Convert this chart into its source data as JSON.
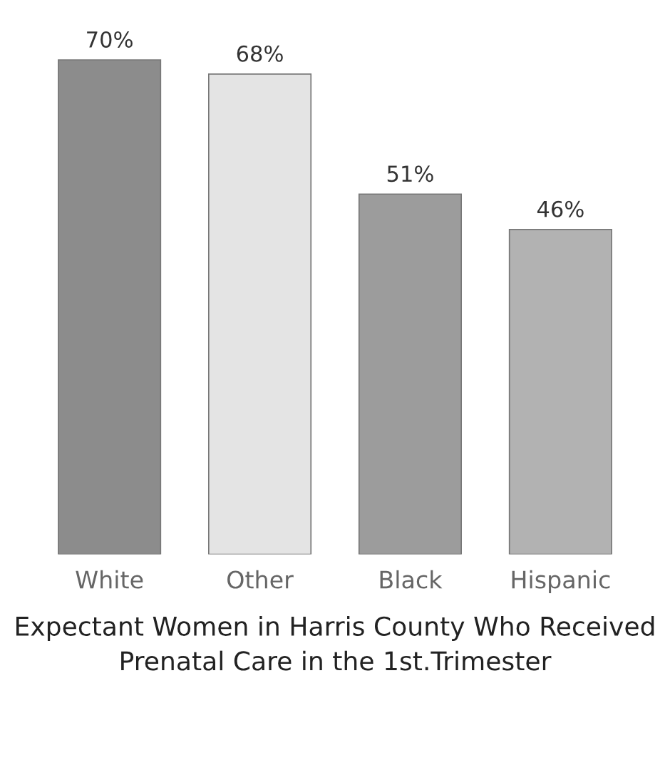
{
  "chart_data": {
    "type": "bar",
    "title": "Expectant Women in Harris County Who Received Prenatal Care in the 1st.Trimester",
    "categories": [
      "White",
      "Other",
      "Black",
      "Hispanic"
    ],
    "values": [
      70,
      68,
      51,
      46
    ],
    "value_labels": [
      "70%",
      "68%",
      "51%",
      "46%"
    ],
    "colors": [
      "#8c8c8c",
      "#e4e4e4",
      "#9c9c9c",
      "#b2b2b2"
    ],
    "grid": false,
    "legend": false
  }
}
